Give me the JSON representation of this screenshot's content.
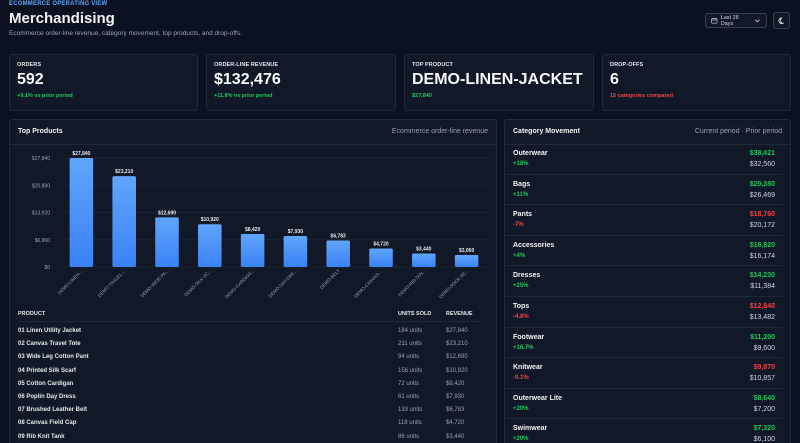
{
  "header": {
    "eyebrow": "ECOMMERCE OPERATING VIEW",
    "title": "Merchandising",
    "subtitle": "Ecommerce order-line revenue, category movement, top products, and drop-offs.",
    "range_label": "Last 28 Days"
  },
  "kpis": [
    {
      "label": "ORDERS",
      "value": "592",
      "delta": "+9.1% vs prior period",
      "tone": "pos"
    },
    {
      "label": "ORDER-LINE REVENUE",
      "value": "$132,476",
      "delta": "+11.8% vs prior period",
      "tone": "pos"
    },
    {
      "label": "TOP PRODUCT",
      "value": "DEMO-LINEN-JACKET",
      "delta": "$27,840",
      "tone": "pos"
    },
    {
      "label": "DROP-OFFS",
      "value": "6",
      "delta": "15 categories compared",
      "tone": "neg"
    }
  ],
  "top_products": {
    "title": "Top Products",
    "note": "Ecommerce order-line revenue",
    "columns": {
      "product": "PRODUCT",
      "units": "UNITS SOLD",
      "revenue": "REVENUE"
    },
    "rows": [
      {
        "name": "01 Linen Utility Jacket",
        "units": "184 units",
        "revenue": "$27,840"
      },
      {
        "name": "02 Canvas Travel Tote",
        "units": "211 units",
        "revenue": "$23,210"
      },
      {
        "name": "03 Wide Leg Cotton Pant",
        "units": "94 units",
        "revenue": "$12,690"
      },
      {
        "name": "04 Printed Silk Scarf",
        "units": "156 units",
        "revenue": "$10,920"
      },
      {
        "name": "05 Cotton Cardigan",
        "units": "72 units",
        "revenue": "$8,420"
      },
      {
        "name": "06 Poplin Day Dress",
        "units": "61 units",
        "revenue": "$7,930"
      },
      {
        "name": "07 Brushed Leather Belt",
        "units": "133 units",
        "revenue": "$6,783"
      },
      {
        "name": "08 Canvas Field Cap",
        "units": "118 units",
        "revenue": "$4,720"
      },
      {
        "name": "09 Rib Knit Tank",
        "units": "86 units",
        "revenue": "$3,440"
      }
    ]
  },
  "chart_data": {
    "type": "bar",
    "categories": [
      "DEMO-LINEN-...",
      "DEMO-TRAVEL-...",
      "DEMO-WIDE-PA...",
      "DEMO-SILK-SC...",
      "DEMO-CARDIGA...",
      "DEMO-DAY-DRE...",
      "DEMO-BELT",
      "DEMO-CANVAS-...",
      "DEMO-RIB-TAN...",
      "DEMO-SOCK-SE..."
    ],
    "values": [
      27840,
      23210,
      12690,
      10920,
      8420,
      7930,
      6783,
      4720,
      3440,
      3060
    ],
    "value_labels": [
      "$27,840",
      "$23,210",
      "$12,690",
      "$10,920",
      "$8,420",
      "$7,930",
      "$6,783",
      "$4,720",
      "$3,440",
      "$3,060"
    ],
    "yticks": [
      0,
      6960,
      13920,
      20880,
      27840
    ],
    "ytick_labels": [
      "$0",
      "$6,960",
      "$13,920",
      "$20,880",
      "$27,840"
    ],
    "ylim": [
      0,
      27840
    ],
    "grid": true,
    "bar_color_top": "#60a5fa",
    "bar_color_bottom": "#3b82f6"
  },
  "category_movement": {
    "title": "Category Movement",
    "note": "Current period · Prior period",
    "rows": [
      {
        "name": "Outerwear",
        "delta": "+18%",
        "current": "$38,421",
        "prior": "$32,560",
        "tone": "pos"
      },
      {
        "name": "Bags",
        "delta": "+11%",
        "current": "$29,380",
        "prior": "$26,469",
        "tone": "pos"
      },
      {
        "name": "Pants",
        "delta": "-7%",
        "current": "$18,760",
        "prior": "$20,172",
        "tone": "neg"
      },
      {
        "name": "Accessories",
        "delta": "+4%",
        "current": "$16,820",
        "prior": "$16,174",
        "tone": "pos"
      },
      {
        "name": "Dresses",
        "delta": "+25%",
        "current": "$14,230",
        "prior": "$11,384",
        "tone": "pos"
      },
      {
        "name": "Tops",
        "delta": "-4.8%",
        "current": "$12,840",
        "prior": "$13,482",
        "tone": "neg"
      },
      {
        "name": "Footwear",
        "delta": "+16.7%",
        "current": "$11,200",
        "prior": "$9,600",
        "tone": "pos"
      },
      {
        "name": "Knitwear",
        "delta": "-9.1%",
        "current": "$9,870",
        "prior": "$10,857",
        "tone": "neg"
      },
      {
        "name": "Outerwear Lite",
        "delta": "+20%",
        "current": "$8,640",
        "prior": "$7,200",
        "tone": "pos"
      },
      {
        "name": "Swimwear",
        "delta": "+20%",
        "current": "$7,320",
        "prior": "$6,100",
        "tone": "pos"
      }
    ]
  },
  "colors": {
    "background": "#0b1120",
    "panel": "#111827",
    "accent": "#60a5fa",
    "positive": "#22c55e",
    "negative": "#ef4444"
  }
}
